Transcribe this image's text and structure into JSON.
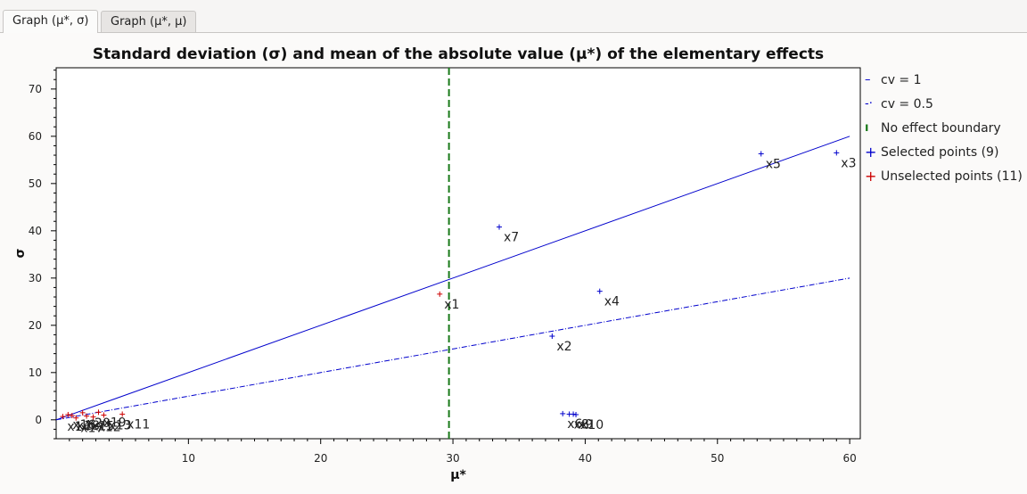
{
  "tabs": [
    {
      "label": "Graph (μ*, σ)",
      "active": true
    },
    {
      "label": "Graph (μ*, μ)",
      "active": false
    }
  ],
  "chart_data": {
    "type": "scatter",
    "title": "Standard deviation (σ) and mean of the absolute value (μ*) of the elementary effects",
    "xlabel": "μ*",
    "ylabel": "σ",
    "xlim": [
      0,
      60.8
    ],
    "ylim": [
      -4,
      74.5
    ],
    "xticks": [
      10,
      20,
      30,
      40,
      50,
      60
    ],
    "yticks": [
      0,
      10,
      20,
      30,
      40,
      50,
      60,
      70
    ],
    "grid": false,
    "legend_position": "right",
    "lines": [
      {
        "name": "cv = 1",
        "x": [
          0,
          60
        ],
        "y": [
          0,
          60
        ],
        "color": "#0000cc",
        "style": "solid",
        "legend_symbol": "–"
      },
      {
        "name": "cv = 0.5",
        "x": [
          0,
          60
        ],
        "y": [
          0,
          30
        ],
        "color": "#0000cc",
        "style": "dashdot",
        "legend_symbol": "-·"
      },
      {
        "name": "No effect boundary",
        "x": [
          29.7,
          29.7
        ],
        "y": [
          -4,
          74.5
        ],
        "color": "#1a7a1a",
        "style": "dashed",
        "legend_symbol": "ı"
      }
    ],
    "series": [
      {
        "name": "Selected points (9)",
        "color": "#0000cc",
        "legend_symbol": "+",
        "points": [
          {
            "x": 59.0,
            "y": 56.5,
            "label": "x3"
          },
          {
            "x": 53.3,
            "y": 56.3,
            "label": "x5"
          },
          {
            "x": 33.5,
            "y": 40.8,
            "label": "x7"
          },
          {
            "x": 41.1,
            "y": 27.2,
            "label": "x4"
          },
          {
            "x": 37.5,
            "y": 17.7,
            "label": "x2"
          },
          {
            "x": 38.3,
            "y": 1.3,
            "label": "x6"
          },
          {
            "x": 38.8,
            "y": 1.2,
            "label": "x8"
          },
          {
            "x": 39.1,
            "y": 1.2,
            "label": "x9"
          },
          {
            "x": 39.3,
            "y": 1.1,
            "label": "x10"
          }
        ]
      },
      {
        "name": "Unselected points (11)",
        "color": "#cc0000",
        "legend_symbol": "+",
        "points": [
          {
            "x": 29.0,
            "y": 26.6,
            "label": "x1"
          },
          {
            "x": 0.5,
            "y": 0.7,
            "label": "x14"
          },
          {
            "x": 0.9,
            "y": 1.1,
            "label": "x16"
          },
          {
            "x": 1.2,
            "y": 0.9,
            "label": "x18"
          },
          {
            "x": 1.5,
            "y": 0.4,
            "label": "x17"
          },
          {
            "x": 2.0,
            "y": 1.5,
            "label": "x20"
          },
          {
            "x": 2.3,
            "y": 0.8,
            "label": "x15"
          },
          {
            "x": 2.8,
            "y": 0.6,
            "label": "x12"
          },
          {
            "x": 3.2,
            "y": 1.6,
            "label": "x19"
          },
          {
            "x": 3.6,
            "y": 1.0,
            "label": "x13"
          },
          {
            "x": 5.0,
            "y": 1.2,
            "label": "x11"
          }
        ]
      }
    ]
  }
}
